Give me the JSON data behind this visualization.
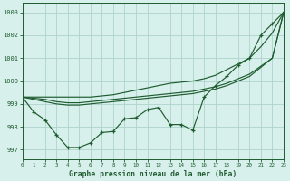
{
  "title": "Graphe pression niveau de la mer (hPa)",
  "xlim": [
    0,
    23
  ],
  "ylim": [
    996.6,
    1003.4
  ],
  "yticks": [
    997,
    998,
    999,
    1000,
    1001,
    1002,
    1003
  ],
  "xticks": [
    0,
    1,
    2,
    3,
    4,
    5,
    6,
    7,
    8,
    9,
    10,
    11,
    12,
    13,
    14,
    15,
    16,
    17,
    18,
    19,
    20,
    21,
    22,
    23
  ],
  "bg_color": "#d8f0ec",
  "grid_color": "#aed4cc",
  "line_color": "#1e5c30",
  "line_detailed": [
    999.3,
    998.65,
    998.3,
    997.65,
    997.1,
    997.1,
    997.3,
    997.75,
    997.8,
    998.35,
    998.4,
    998.75,
    998.85,
    998.1,
    998.1,
    997.85,
    999.3,
    999.8,
    1000.2,
    1000.7,
    1001.0,
    1002.0,
    1002.5,
    1003.0
  ],
  "line_smooth_upper": [
    999.3,
    999.3,
    999.3,
    999.3,
    999.3,
    999.3,
    999.3,
    999.35,
    999.4,
    999.5,
    999.6,
    999.7,
    999.8,
    999.9,
    999.95,
    1000.0,
    1000.1,
    1000.25,
    1000.5,
    1000.75,
    1001.0,
    1001.5,
    1002.1,
    1003.0
  ],
  "line_smooth_mid1": [
    999.3,
    999.25,
    999.2,
    999.1,
    999.05,
    999.05,
    999.1,
    999.15,
    999.2,
    999.25,
    999.3,
    999.35,
    999.4,
    999.45,
    999.5,
    999.55,
    999.65,
    999.75,
    999.9,
    1000.1,
    1000.3,
    1000.65,
    1001.0,
    1003.0
  ],
  "line_smooth_mid2": [
    999.3,
    999.2,
    999.1,
    999.0,
    998.95,
    998.95,
    999.0,
    999.05,
    999.1,
    999.15,
    999.2,
    999.25,
    999.3,
    999.35,
    999.4,
    999.45,
    999.55,
    999.65,
    999.8,
    1000.0,
    1000.2,
    1000.6,
    1001.0,
    1003.0
  ]
}
